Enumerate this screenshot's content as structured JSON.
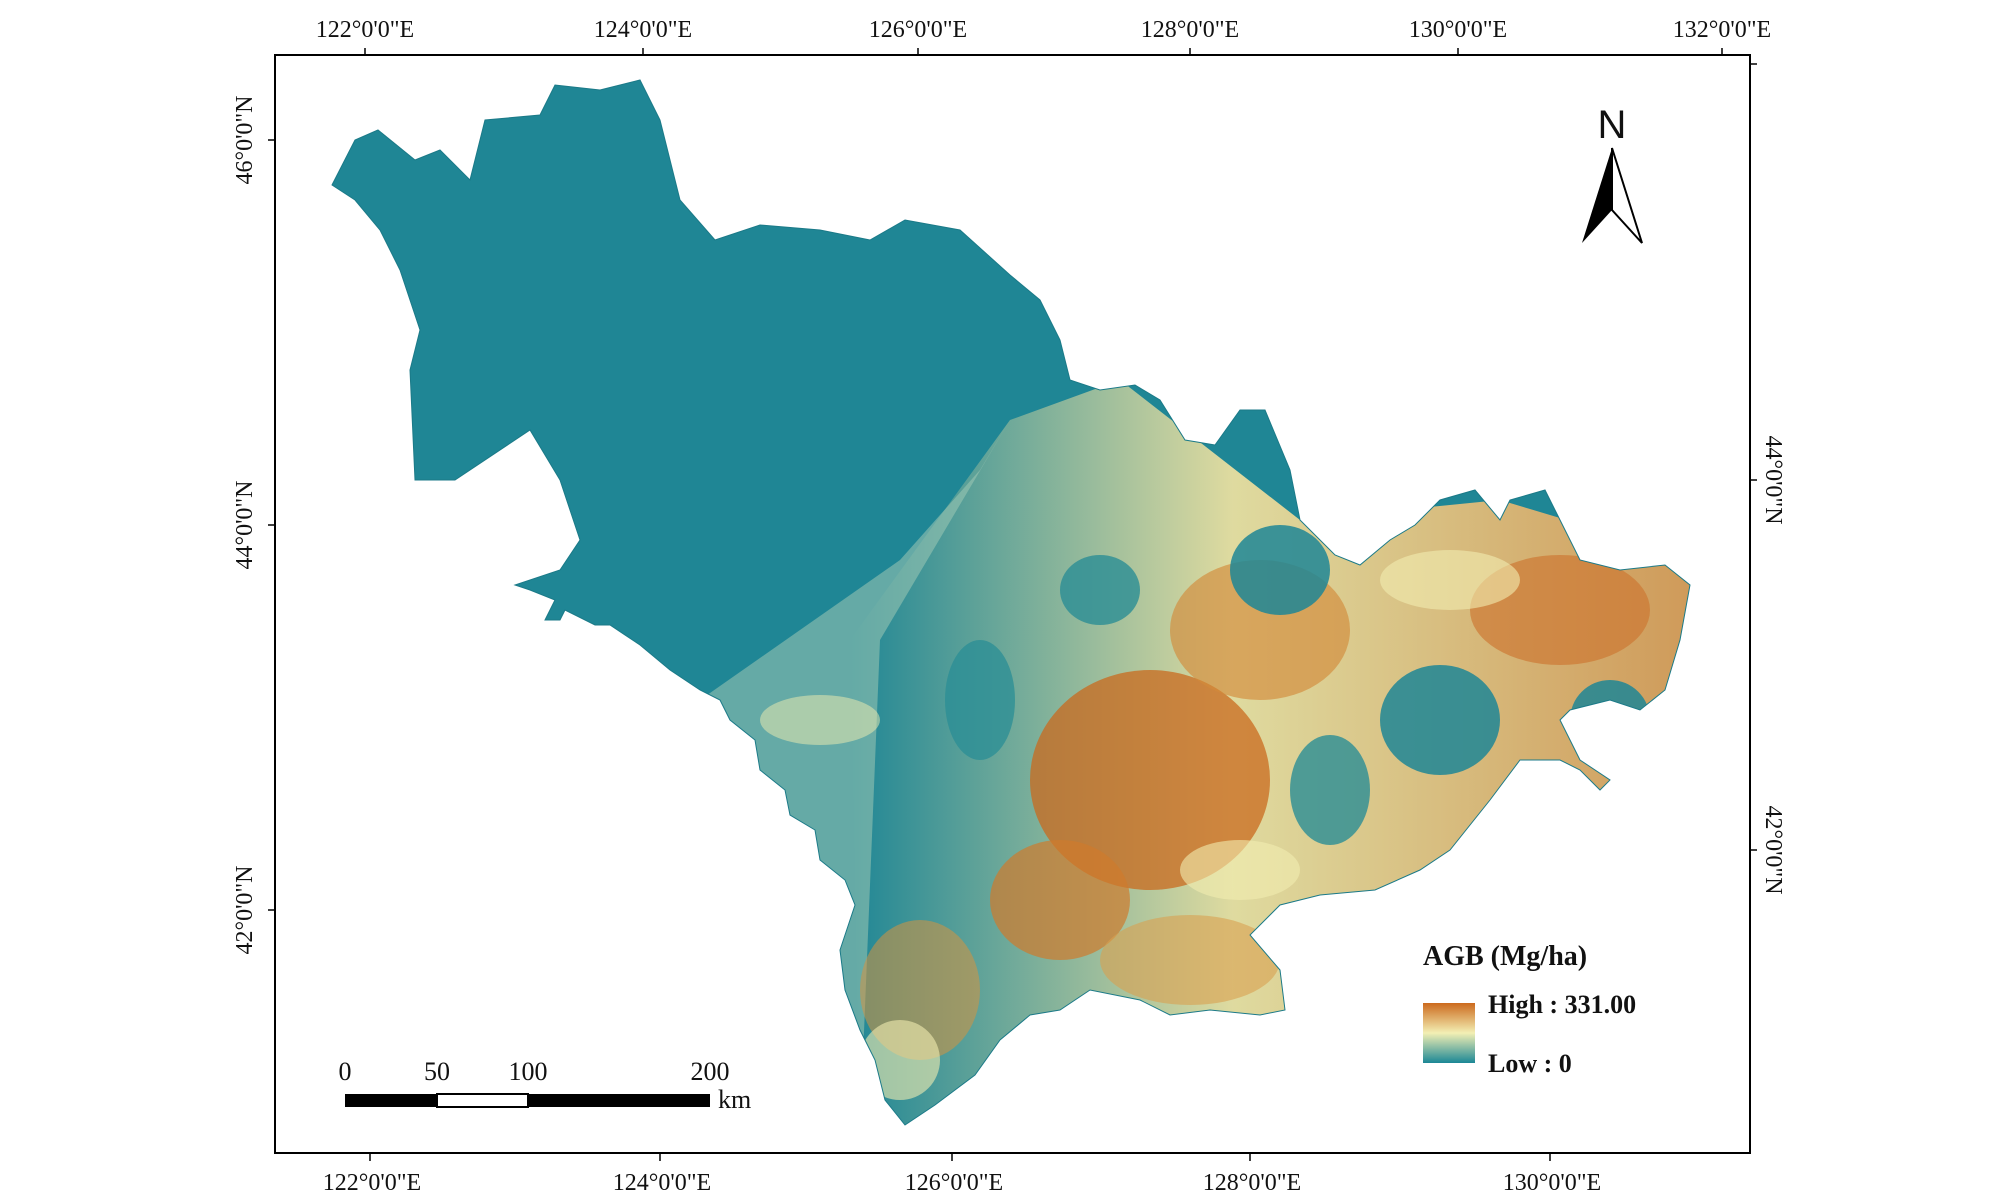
{
  "map": {
    "top_lon_labels": [
      "122°0'0\"E",
      "124°0'0\"E",
      "126°0'0\"E",
      "128°0'0\"E",
      "130°0'0\"E",
      "132°0'0\"E"
    ],
    "bottom_lon_labels": [
      "122°0'0\"E",
      "124°0'0\"E",
      "126°0'0\"E",
      "128°0'0\"E",
      "130°0'0\"E"
    ],
    "left_lat_labels": [
      "46°0'0\"N",
      "44°0'0\"N",
      "42°0'0\"N"
    ],
    "right_lat_labels": [
      "44°0'0\"N",
      "42°0'0\"N"
    ],
    "north_label": "N",
    "legend": {
      "title": "AGB (Mg/ha)",
      "high_label": "High : 331.00",
      "low_label": "Low : 0",
      "high_value": 331.0,
      "low_value": 0,
      "colors": [
        "#1b8796",
        "#f3efb4",
        "#cc6a1d"
      ]
    },
    "scale_bar": {
      "labels": [
        "0",
        "50",
        "100",
        "200"
      ],
      "unit": "km"
    },
    "colors": {
      "low_agb": "#1f8695",
      "mid_agb": "#f1edb0",
      "high_agb": "#c9691e",
      "frame": "#000000"
    }
  }
}
